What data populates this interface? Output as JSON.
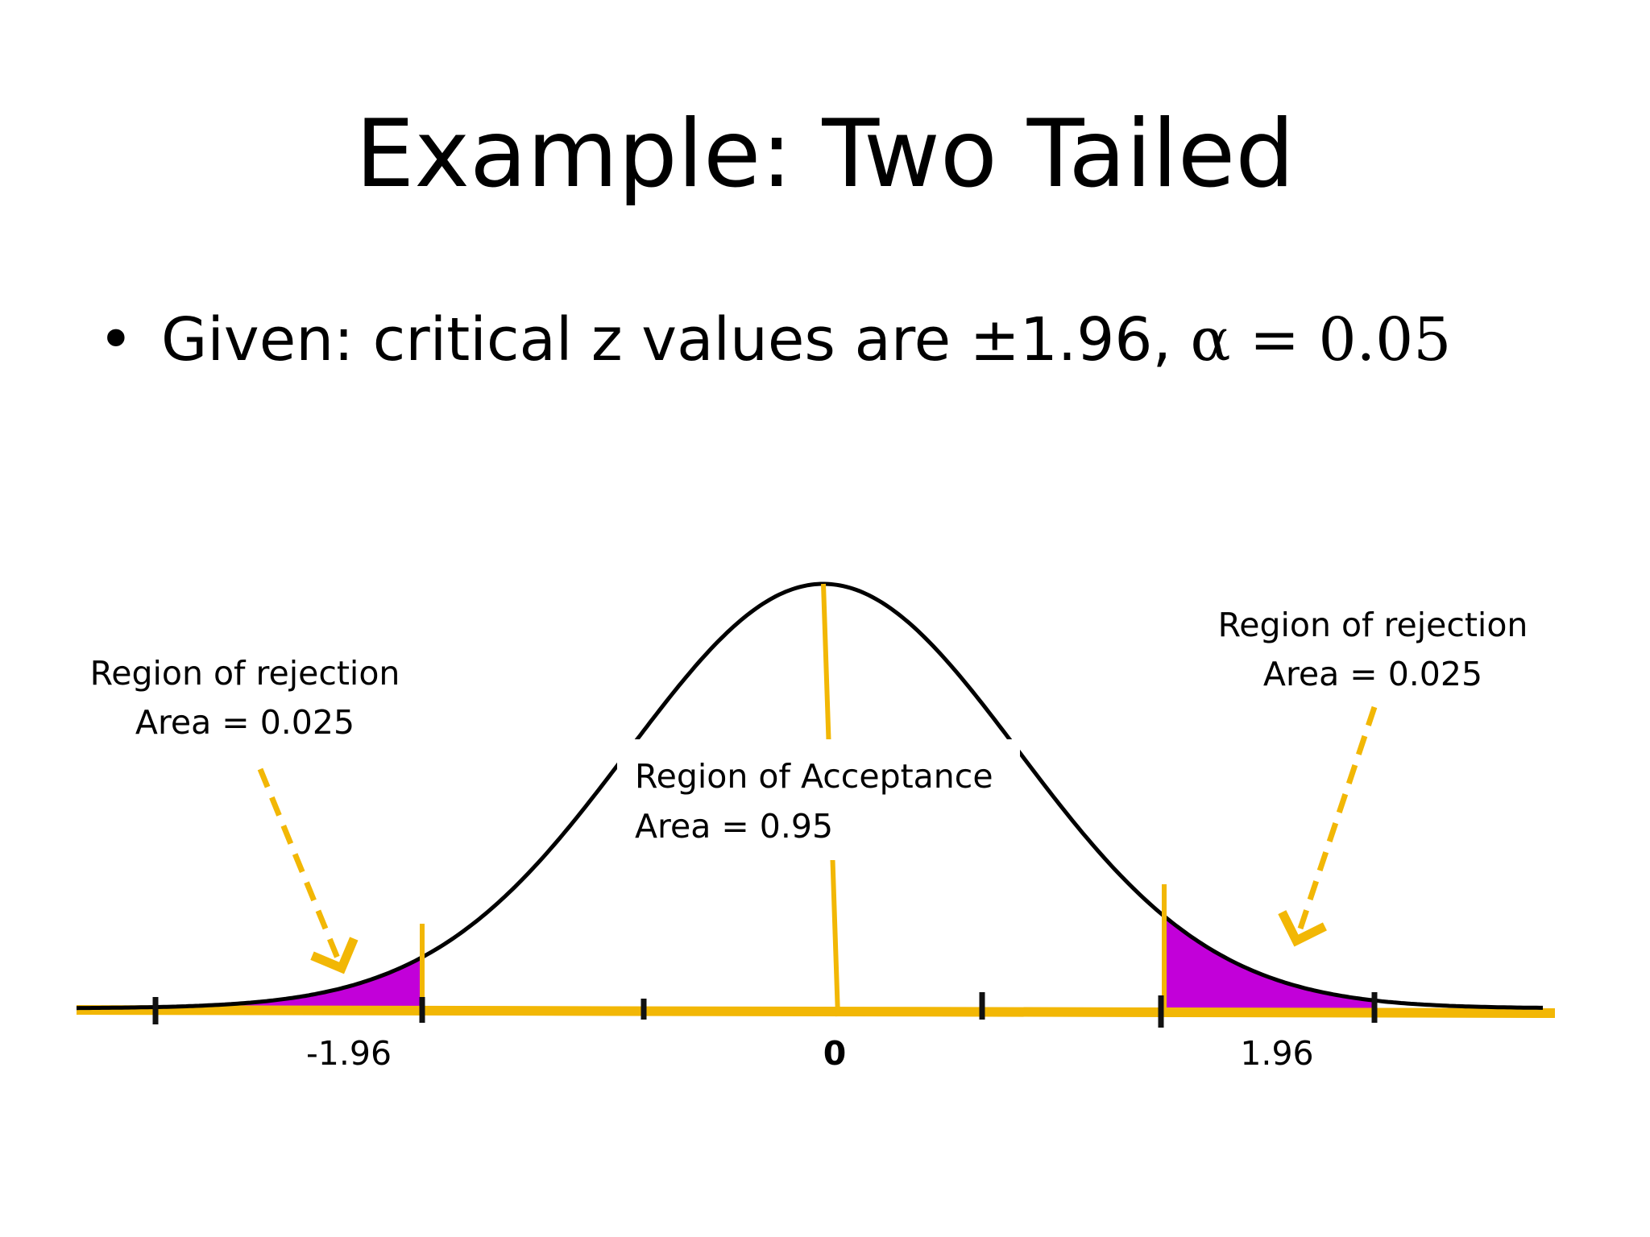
{
  "slide": {
    "title": "Example: Two Tailed",
    "bullet_prefix": "Given: critical z values are ±1.96, ",
    "bullet_alpha": "α = 0.05"
  },
  "diagram": {
    "curve_color": "#000000",
    "line_color": "#F2B705",
    "rejection_fill": "#C200D9",
    "critical_value": 1.96,
    "left_tail": {
      "label_line1": "Region of rejection",
      "label_line2": "Area = 0.025"
    },
    "right_tail": {
      "label_line1": "Region of rejection",
      "label_line2": "Area = 0.025"
    },
    "acceptance": {
      "label_line1": "Region of Acceptance",
      "label_line2": "Area = 0.95"
    },
    "axis_labels": {
      "left_critical": "-1.96",
      "center": "0",
      "right_critical": "1.96"
    }
  }
}
